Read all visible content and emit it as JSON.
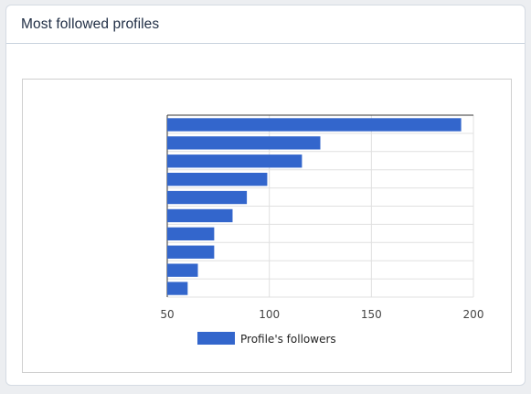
{
  "card": {
    "title": "Most followed profiles"
  },
  "chart_data": {
    "type": "bar",
    "orientation": "horizontal",
    "categories": [
      "",
      "",
      "",
      "",
      "",
      "",
      "",
      "",
      "",
      ""
    ],
    "series": [
      {
        "name": "Profile's followers",
        "color": "#3366cc",
        "values": [
          194,
          125,
          116,
          99,
          89,
          82,
          73,
          73,
          65,
          60
        ]
      }
    ],
    "xlim": [
      50,
      200
    ],
    "xticks": [
      "50",
      "100",
      "150",
      "200"
    ],
    "xtick_values": [
      50,
      100,
      150,
      200
    ],
    "grid": true,
    "legend_position": "bottom"
  }
}
